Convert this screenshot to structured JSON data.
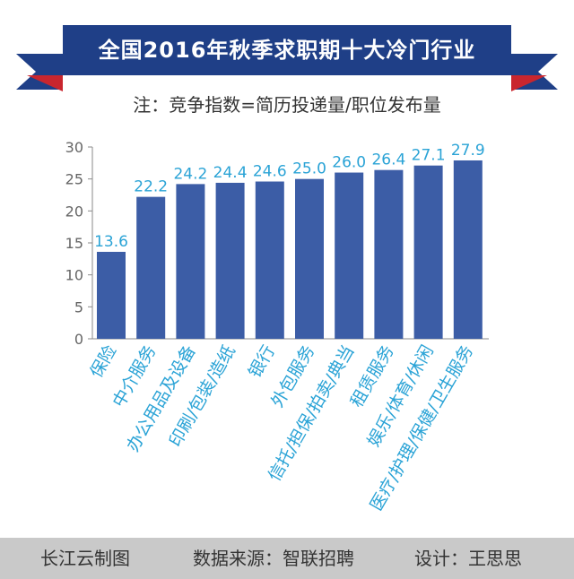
{
  "header": {
    "title": "全国2016年秋季求职期十大冷门行业",
    "note": "注：竞争指数=简历投递量/职位发布量"
  },
  "footer": {
    "brand": "长江云制图",
    "source": "数据来源：智联招聘",
    "design": "设计：王思思"
  },
  "colors": {
    "banner": "#1f3f87",
    "ribbon_red": "#c9262e",
    "bar": "#3c5da6",
    "label": "#2aa3d6",
    "footer_bg": "#c9c9c9"
  },
  "chart_data": {
    "type": "bar",
    "categories": [
      "保险",
      "中介服务",
      "办公用品及设备",
      "印刷/包装/造纸",
      "银行",
      "外包服务",
      "信托/担保/拍卖/典当",
      "租赁服务",
      "娱乐/体育/休闲",
      "医疗/护理/保健/卫生服务"
    ],
    "values": [
      13.6,
      22.2,
      24.2,
      24.4,
      24.6,
      25.0,
      26.0,
      26.4,
      27.1,
      27.9
    ],
    "value_labels": [
      "13.6",
      "22.2",
      "24.2",
      "24.4",
      "24.6",
      "25.0",
      "26.0",
      "26.4",
      "27.1",
      "27.9"
    ],
    "ylim": [
      0,
      30
    ],
    "yticks": [
      "0",
      "5",
      "10",
      "15",
      "20",
      "25",
      "30"
    ],
    "grid": false,
    "legend": "none"
  }
}
